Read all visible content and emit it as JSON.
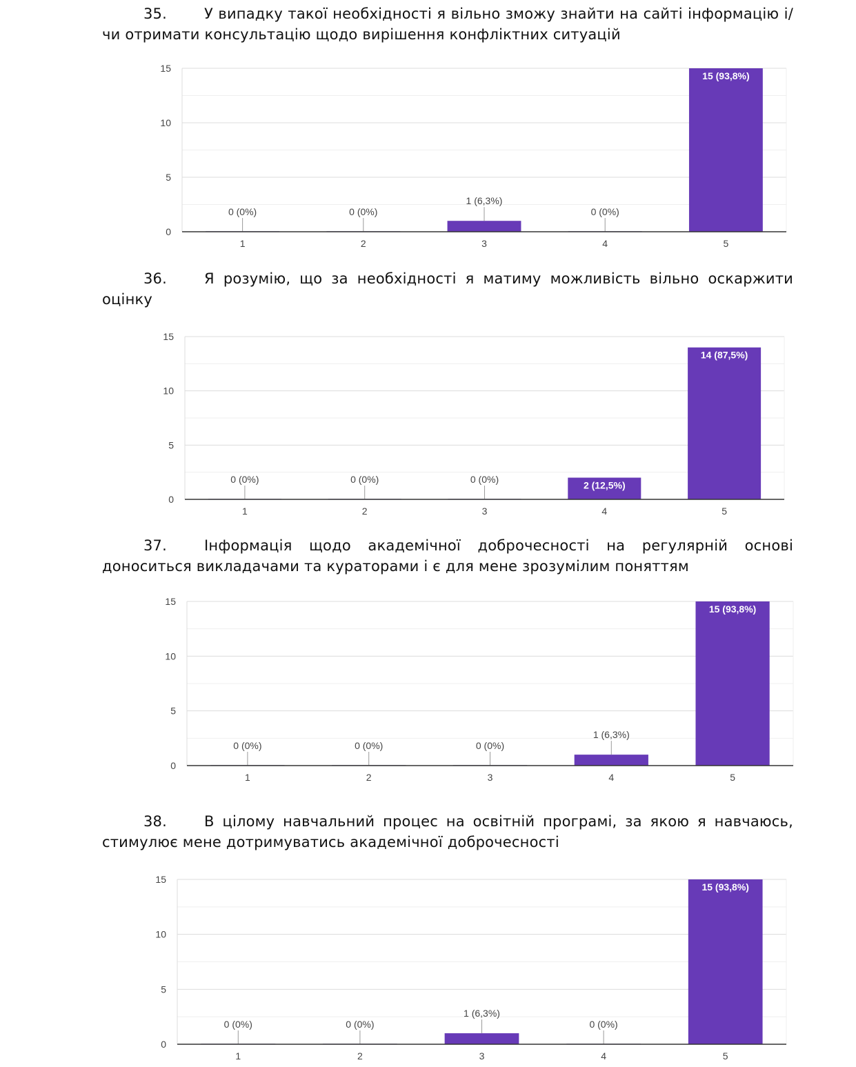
{
  "colors": {
    "bar": "#673ab7",
    "axis": "#333333",
    "grid": "#e3e3e3",
    "label": "#444444"
  },
  "questions": [
    {
      "number": "35.",
      "text": "У випадку такої необхідності я вільно зможу знайти на сайті інформацію і/чи отримати консультацію щодо вирішення конфліктних ситуацій"
    },
    {
      "number": "36.",
      "text": "Я розумію, що за необхідності я матиму можливість вільно оскаржити оцінку"
    },
    {
      "number": "37.",
      "text": "Інформація щодо академічної доброчесності на регулярній основі доноситься викладачами та кураторами і є для мене зрозумілим поняттям"
    },
    {
      "number": "38.",
      "text": "В цілому навчальний процес на освітній програмі, за якою я навчаюсь, стимулює мене дотримуватись академічної доброчесності"
    }
  ],
  "chart_data": [
    {
      "type": "bar",
      "title": "",
      "xlabel": "",
      "ylabel": "",
      "categories": [
        "1",
        "2",
        "3",
        "4",
        "5"
      ],
      "values": [
        0,
        0,
        1,
        0,
        15
      ],
      "data_labels": [
        "0 (0%)",
        "0 (0%)",
        "1 (6,3%)",
        "0 (0%)",
        "15 (93,8%)"
      ],
      "ylim": [
        0,
        15
      ],
      "yticks": [
        "0",
        "5",
        "10",
        "15"
      ],
      "grid": true,
      "legend": "none"
    },
    {
      "type": "bar",
      "title": "",
      "xlabel": "",
      "ylabel": "",
      "categories": [
        "1",
        "2",
        "3",
        "4",
        "5"
      ],
      "values": [
        0,
        0,
        0,
        2,
        14
      ],
      "data_labels": [
        "0 (0%)",
        "0 (0%)",
        "0 (0%)",
        "2 (12,5%)",
        "14 (87,5%)"
      ],
      "ylim": [
        0,
        15
      ],
      "yticks": [
        "0",
        "5",
        "10",
        "15"
      ],
      "grid": true,
      "legend": "none"
    },
    {
      "type": "bar",
      "title": "",
      "xlabel": "",
      "ylabel": "",
      "categories": [
        "1",
        "2",
        "3",
        "4",
        "5"
      ],
      "values": [
        0,
        0,
        0,
        1,
        15
      ],
      "data_labels": [
        "0 (0%)",
        "0 (0%)",
        "0 (0%)",
        "1 (6,3%)",
        "15 (93,8%)"
      ],
      "ylim": [
        0,
        15
      ],
      "yticks": [
        "0",
        "5",
        "10",
        "15"
      ],
      "grid": true,
      "legend": "none"
    },
    {
      "type": "bar",
      "title": "",
      "xlabel": "",
      "ylabel": "",
      "categories": [
        "1",
        "2",
        "3",
        "4",
        "5"
      ],
      "values": [
        0,
        0,
        1,
        0,
        15
      ],
      "data_labels": [
        "0 (0%)",
        "0 (0%)",
        "1 (6,3%)",
        "0 (0%)",
        "15 (93,8%)"
      ],
      "ylim": [
        0,
        15
      ],
      "yticks": [
        "0",
        "5",
        "10",
        "15"
      ],
      "grid": true,
      "legend": "none"
    }
  ]
}
